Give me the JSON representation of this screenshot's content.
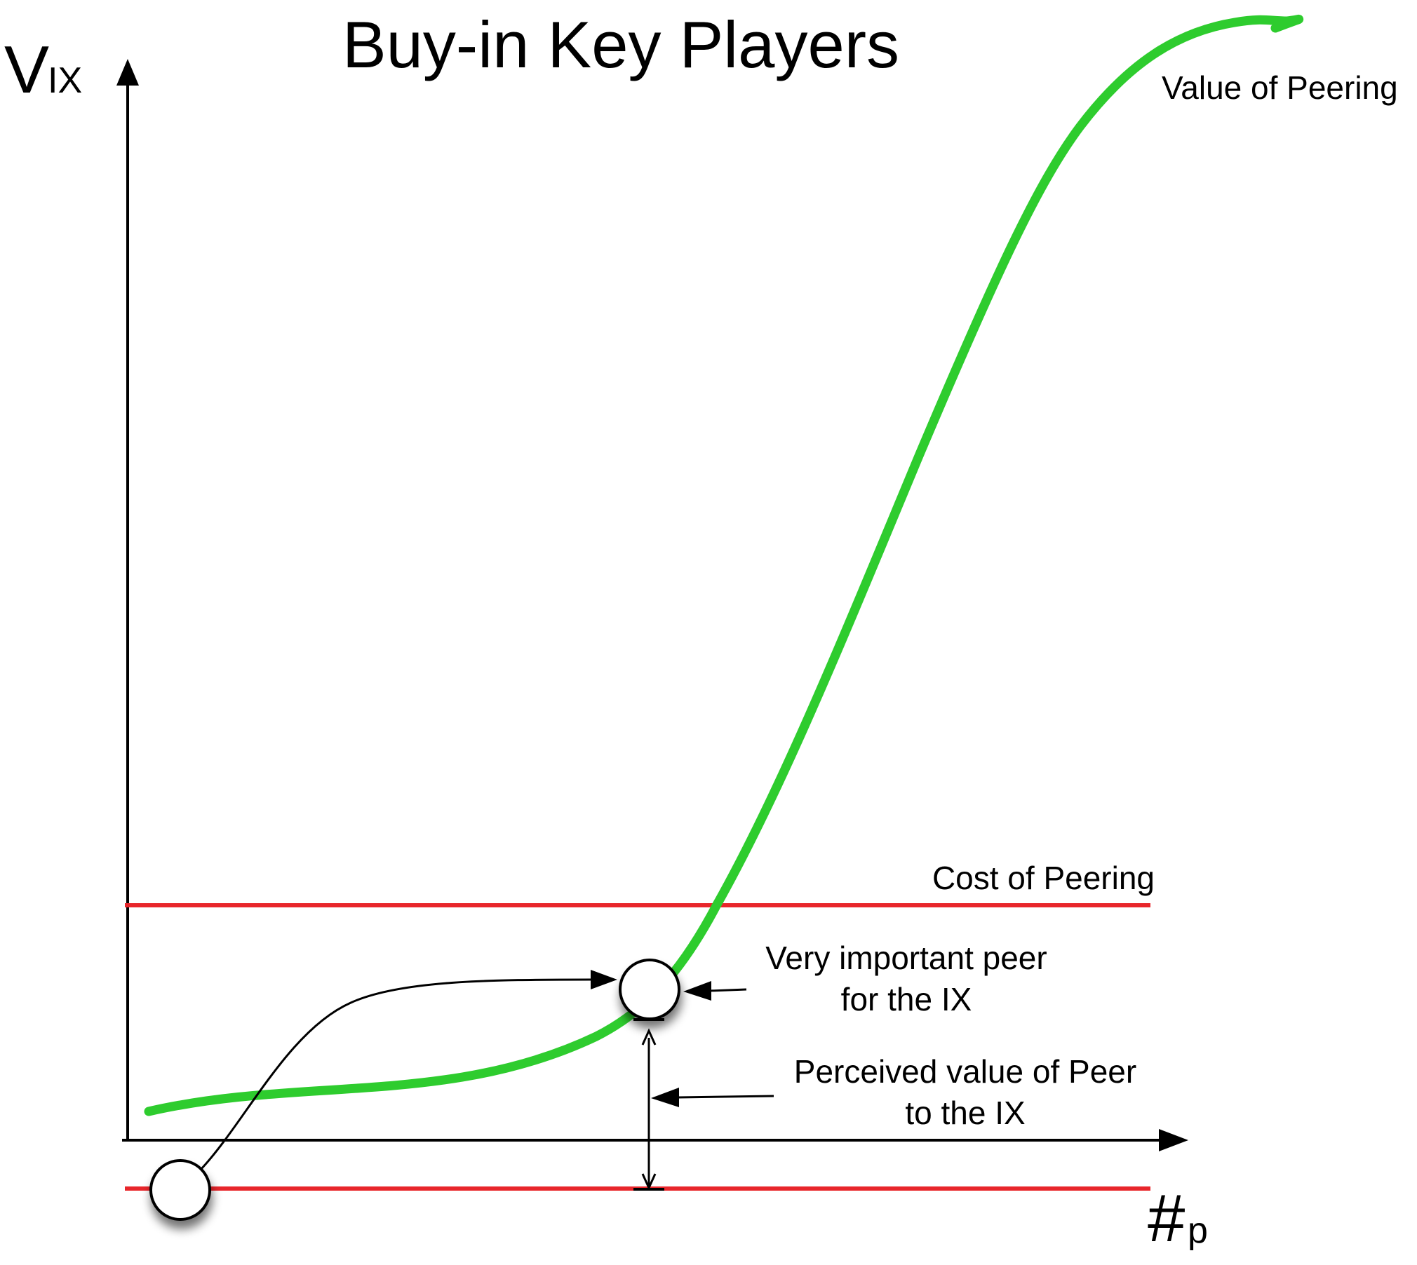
{
  "diagram": {
    "title": "Buy-in Key Players",
    "y_axis": {
      "main": "V",
      "sub": "IX"
    },
    "x_axis": {
      "main": "#",
      "sub": "p"
    },
    "curve": {
      "label": "Value of Peering",
      "color": "#2ecc2e"
    },
    "cost_line": {
      "label": "Cost of Peering",
      "color": "#e8262b"
    },
    "annotations": {
      "important_peer": [
        "Very important peer",
        "for the IX"
      ],
      "perceived_value": [
        "Perceived value of Peer",
        "to the IX"
      ]
    },
    "colors": {
      "axis": "#000000",
      "node_fill": "#ffffff"
    }
  }
}
